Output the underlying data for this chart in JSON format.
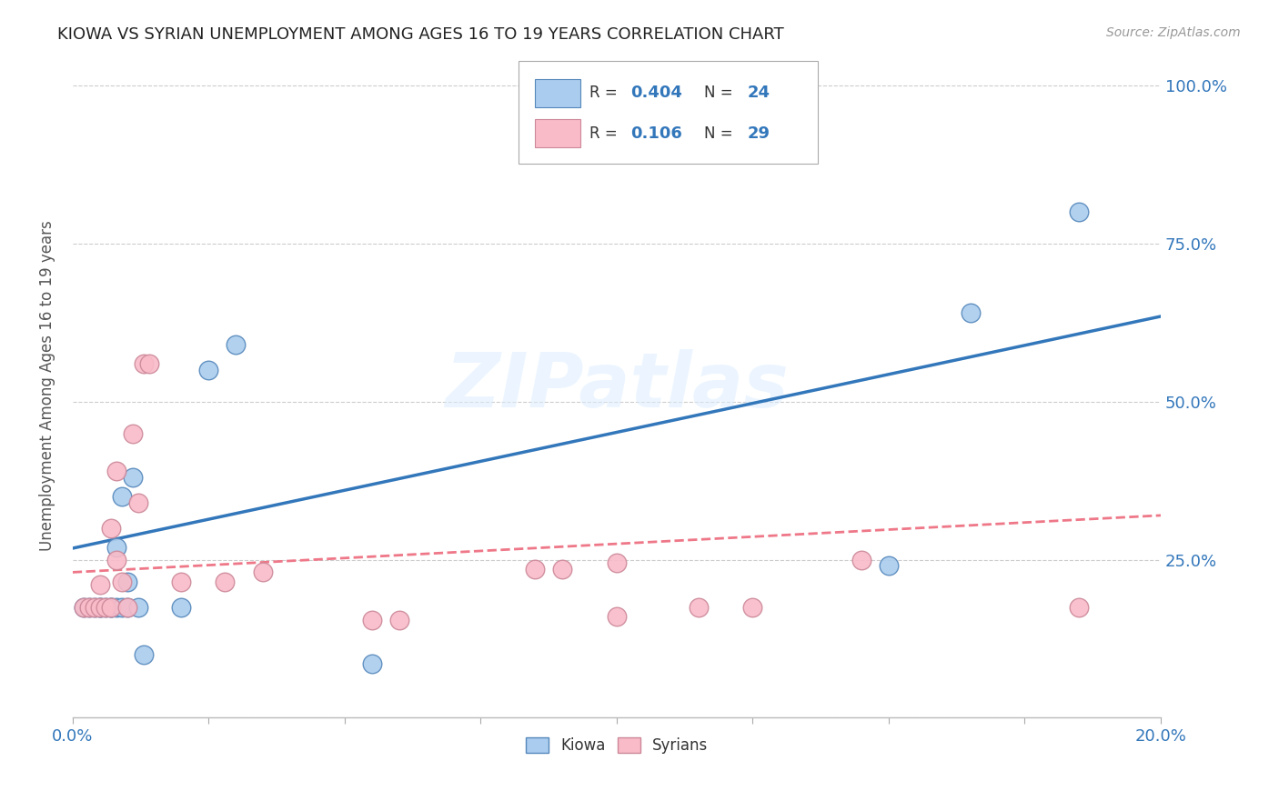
{
  "title": "KIOWA VS SYRIAN UNEMPLOYMENT AMONG AGES 16 TO 19 YEARS CORRELATION CHART",
  "source": "Source: ZipAtlas.com",
  "ylabel": "Unemployment Among Ages 16 to 19 years",
  "xlim": [
    0.0,
    0.2
  ],
  "ylim": [
    0.0,
    1.05
  ],
  "xticks": [
    0.0,
    0.025,
    0.05,
    0.075,
    0.1,
    0.125,
    0.15,
    0.175,
    0.2
  ],
  "yticks": [
    0.0,
    0.25,
    0.5,
    0.75,
    1.0
  ],
  "ytick_labels_right": [
    "",
    "25.0%",
    "50.0%",
    "75.0%",
    "100.0%"
  ],
  "kiowa_color": "#aaccee",
  "kiowa_edge": "#5588bb",
  "syrian_color": "#f9bbc8",
  "syrian_edge": "#cc8899",
  "trend_kiowa_color": "#3377bb",
  "trend_syrian_color": "#ee7788",
  "legend_r_kiowa": "0.404",
  "legend_n_kiowa": "24",
  "legend_r_syrian": "0.106",
  "legend_n_syrian": "29",
  "watermark": "ZIPatlas",
  "trend_kiowa_y0": 0.268,
  "trend_kiowa_y1": 0.635,
  "trend_syrian_y0": 0.23,
  "trend_syrian_y1": 0.32,
  "kiowa_x": [
    0.002,
    0.003,
    0.004,
    0.005,
    0.005,
    0.006,
    0.007,
    0.007,
    0.008,
    0.008,
    0.009,
    0.009,
    0.01,
    0.01,
    0.011,
    0.012,
    0.013,
    0.02,
    0.025,
    0.03,
    0.055,
    0.15,
    0.165,
    0.185
  ],
  "kiowa_y": [
    0.175,
    0.175,
    0.175,
    0.175,
    0.175,
    0.175,
    0.175,
    0.175,
    0.175,
    0.27,
    0.35,
    0.175,
    0.215,
    0.175,
    0.38,
    0.175,
    0.1,
    0.175,
    0.55,
    0.59,
    0.085,
    0.24,
    0.64,
    0.8
  ],
  "syrian_x": [
    0.002,
    0.003,
    0.004,
    0.005,
    0.005,
    0.006,
    0.007,
    0.007,
    0.008,
    0.008,
    0.009,
    0.01,
    0.011,
    0.012,
    0.013,
    0.014,
    0.02,
    0.028,
    0.035,
    0.055,
    0.06,
    0.085,
    0.09,
    0.1,
    0.1,
    0.115,
    0.125,
    0.145,
    0.185
  ],
  "syrian_y": [
    0.175,
    0.175,
    0.175,
    0.21,
    0.175,
    0.175,
    0.3,
    0.175,
    0.25,
    0.39,
    0.215,
    0.175,
    0.45,
    0.34,
    0.56,
    0.56,
    0.215,
    0.215,
    0.23,
    0.155,
    0.155,
    0.235,
    0.235,
    0.245,
    0.16,
    0.175,
    0.175,
    0.25,
    0.175
  ],
  "background_color": "#ffffff",
  "grid_color": "#cccccc"
}
